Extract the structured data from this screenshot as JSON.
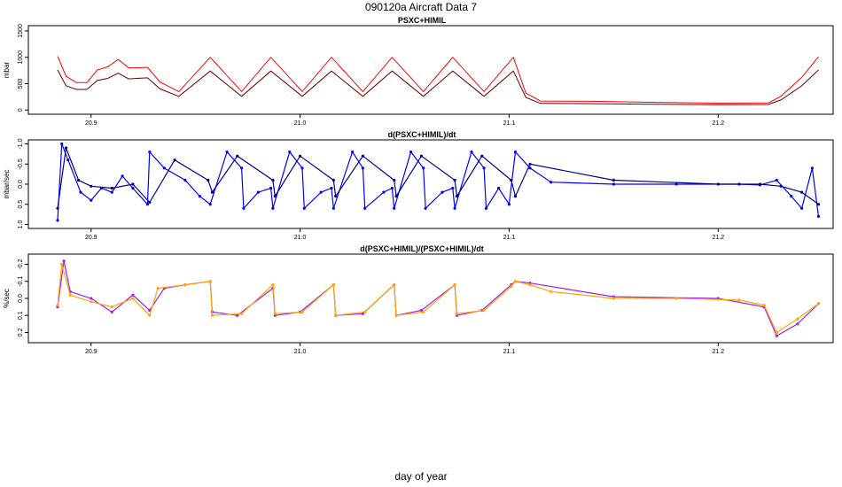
{
  "page": {
    "title": "090120a   Aircraft Data 7",
    "xlabel": "day of year"
  },
  "colors": {
    "red": "#ff0000",
    "darkred": "#660000",
    "blue": "#0000ff",
    "navy": "#00008b",
    "purple": "#a020f0",
    "orange": "#ffa500"
  },
  "chart_data": [
    {
      "type": "line",
      "title": "PSXC+HIMIL",
      "xlabel": "",
      "ylabel": "mbar",
      "xlim": [
        20.87,
        21.255
      ],
      "ylim": [
        -80,
        1600
      ],
      "xticks": [
        20.9,
        21.0,
        21.1,
        21.2
      ],
      "xtick_labels": [
        "20.9",
        "21.0",
        "21.1",
        "21.2"
      ],
      "yticks": [
        0,
        500,
        1000,
        1500
      ],
      "ytick_labels": [
        "0",
        "500",
        "1000",
        "1500"
      ],
      "series": [
        {
          "color": "#ff0000",
          "x": [
            20.884,
            20.888,
            20.893,
            20.898,
            20.903,
            20.908,
            20.913,
            20.918,
            20.922,
            20.927,
            20.933,
            20.942,
            20.957,
            20.972,
            20.986,
            21.001,
            21.015,
            21.03,
            21.044,
            21.059,
            21.073,
            21.088,
            21.102,
            21.108,
            21.115,
            21.14,
            21.17,
            21.2,
            21.224,
            21.23,
            21.24,
            21.248
          ],
          "y": [
            1020,
            640,
            520,
            520,
            760,
            820,
            960,
            800,
            800,
            810,
            530,
            350,
            1000,
            350,
            1000,
            350,
            1000,
            350,
            1000,
            350,
            1000,
            350,
            1000,
            320,
            170,
            165,
            145,
            130,
            135,
            260,
            620,
            1010
          ]
        },
        {
          "color": "#660000",
          "x": [
            20.884,
            20.888,
            20.893,
            20.898,
            20.903,
            20.908,
            20.913,
            20.918,
            20.922,
            20.927,
            20.933,
            20.942,
            20.957,
            20.972,
            20.986,
            21.001,
            21.015,
            21.03,
            21.044,
            21.059,
            21.073,
            21.088,
            21.102,
            21.108,
            21.115,
            21.14,
            21.17,
            21.2,
            21.224,
            21.23,
            21.24,
            21.248
          ],
          "y": [
            760,
            460,
            390,
            390,
            560,
            600,
            700,
            590,
            600,
            610,
            400,
            260,
            740,
            260,
            740,
            260,
            740,
            260,
            740,
            260,
            740,
            260,
            740,
            240,
            125,
            120,
            110,
            100,
            105,
            190,
            460,
            760
          ]
        }
      ]
    },
    {
      "type": "scatter",
      "title": "d(PSXC+HIMIL)/dt",
      "xlabel": "",
      "ylabel": "mbar/sec",
      "ylim_inverted": [
        -1.1,
        1.1
      ],
      "yticks": [
        -1.0,
        -0.5,
        0.0,
        0.5,
        1.0
      ],
      "ytick_labels": [
        "-1.0",
        "-0.5",
        "0.0",
        "0.5",
        "1.0"
      ],
      "series": [
        {
          "color": "#0000ff",
          "x": [
            20.884,
            20.886,
            20.889,
            20.895,
            20.9,
            20.905,
            20.91,
            20.915,
            20.92,
            20.927,
            20.928,
            20.935,
            20.945,
            20.952,
            20.957,
            20.965,
            20.972,
            20.973,
            20.98,
            20.986,
            20.987,
            20.995,
            21.001,
            21.002,
            21.01,
            21.015,
            21.016,
            21.025,
            21.03,
            21.031,
            21.04,
            21.044,
            21.045,
            21.053,
            21.059,
            21.06,
            21.068,
            21.073,
            21.074,
            21.082,
            21.088,
            21.089,
            21.095,
            21.1,
            21.103,
            21.11,
            21.12,
            21.15,
            21.18,
            21.21,
            21.22,
            21.228,
            21.235,
            21.24,
            21.245,
            21.248
          ],
          "y": [
            0.9,
            -1.0,
            -0.6,
            0.2,
            0.4,
            0.1,
            0.2,
            -0.2,
            0.1,
            0.5,
            -0.8,
            -0.4,
            -0.1,
            0.3,
            0.5,
            -0.8,
            -0.4,
            0.6,
            0.2,
            0.1,
            0.6,
            -0.8,
            -0.4,
            0.6,
            0.2,
            0.1,
            0.6,
            -0.8,
            -0.4,
            0.6,
            0.2,
            0.1,
            0.6,
            -0.8,
            -0.4,
            0.6,
            0.2,
            0.1,
            0.6,
            -0.8,
            -0.4,
            0.6,
            0.1,
            0.5,
            -0.8,
            -0.4,
            -0.05,
            0.0,
            0.0,
            0.0,
            0.02,
            -0.1,
            0.3,
            0.6,
            -0.4,
            0.8
          ]
        },
        {
          "color": "#00008b",
          "x": [
            20.884,
            20.888,
            20.894,
            20.9,
            20.91,
            20.92,
            20.928,
            20.94,
            20.956,
            20.958,
            20.97,
            20.987,
            20.988,
            21.0,
            21.016,
            21.017,
            21.03,
            21.045,
            21.046,
            21.058,
            21.074,
            21.075,
            21.087,
            21.101,
            21.103,
            21.11,
            21.15,
            21.2,
            21.22,
            21.23,
            21.24,
            21.248
          ],
          "y": [
            0.6,
            -0.9,
            -0.1,
            0.05,
            0.1,
            0.0,
            0.45,
            -0.6,
            -0.1,
            0.2,
            -0.7,
            -0.1,
            0.3,
            -0.7,
            -0.1,
            0.3,
            -0.7,
            -0.1,
            0.3,
            -0.7,
            -0.1,
            0.3,
            -0.7,
            -0.1,
            0.3,
            -0.5,
            -0.1,
            0.0,
            0.0,
            0.05,
            0.2,
            0.5
          ]
        }
      ]
    },
    {
      "type": "scatter",
      "title": "d(PSXC+HIMIL)/(PSXC+HIMIL)/dt",
      "xlabel": "",
      "ylabel": "%/sec",
      "ylim_inverted": [
        -0.26,
        0.26
      ],
      "yticks": [
        -0.2,
        -0.1,
        0.0,
        0.1,
        0.2
      ],
      "ytick_labels": [
        "-0.2",
        "-0.1",
        "0.0",
        "0.1",
        "0.2"
      ],
      "series": [
        {
          "color": "#a020f0",
          "x": [
            20.884,
            20.887,
            20.89,
            20.9,
            20.91,
            20.92,
            20.928,
            20.935,
            20.945,
            20.957,
            20.958,
            20.97,
            20.987,
            20.988,
            21.0,
            21.016,
            21.017,
            21.03,
            21.045,
            21.046,
            21.058,
            21.074,
            21.075,
            21.087,
            21.101,
            21.103,
            21.11,
            21.15,
            21.2,
            21.222,
            21.228,
            21.238,
            21.248
          ],
          "y": [
            0.05,
            -0.22,
            -0.04,
            0.0,
            0.08,
            -0.02,
            0.07,
            -0.06,
            -0.08,
            -0.1,
            0.08,
            0.1,
            -0.06,
            0.1,
            0.08,
            -0.08,
            0.1,
            0.09,
            -0.08,
            0.1,
            0.07,
            -0.08,
            0.1,
            0.07,
            -0.08,
            -0.1,
            -0.09,
            -0.01,
            0.0,
            0.05,
            0.22,
            0.15,
            0.03
          ]
        },
        {
          "color": "#ffa500",
          "x": [
            20.884,
            20.886,
            20.89,
            20.9,
            20.91,
            20.92,
            20.928,
            20.932,
            20.945,
            20.957,
            20.958,
            20.972,
            20.987,
            20.988,
            21.001,
            21.016,
            21.017,
            21.031,
            21.045,
            21.046,
            21.059,
            21.074,
            21.075,
            21.088,
            21.101,
            21.103,
            21.11,
            21.12,
            21.15,
            21.18,
            21.21,
            21.222,
            21.228,
            21.238,
            21.248
          ],
          "y": [
            0.04,
            -0.2,
            -0.02,
            0.02,
            0.05,
            0.0,
            0.1,
            -0.06,
            -0.08,
            -0.1,
            0.1,
            0.09,
            -0.08,
            0.09,
            0.08,
            -0.08,
            0.1,
            0.08,
            -0.08,
            0.1,
            0.08,
            -0.08,
            0.09,
            0.07,
            -0.07,
            -0.1,
            -0.08,
            -0.04,
            0.0,
            0.0,
            0.01,
            0.04,
            0.2,
            0.12,
            0.03
          ]
        }
      ]
    }
  ]
}
